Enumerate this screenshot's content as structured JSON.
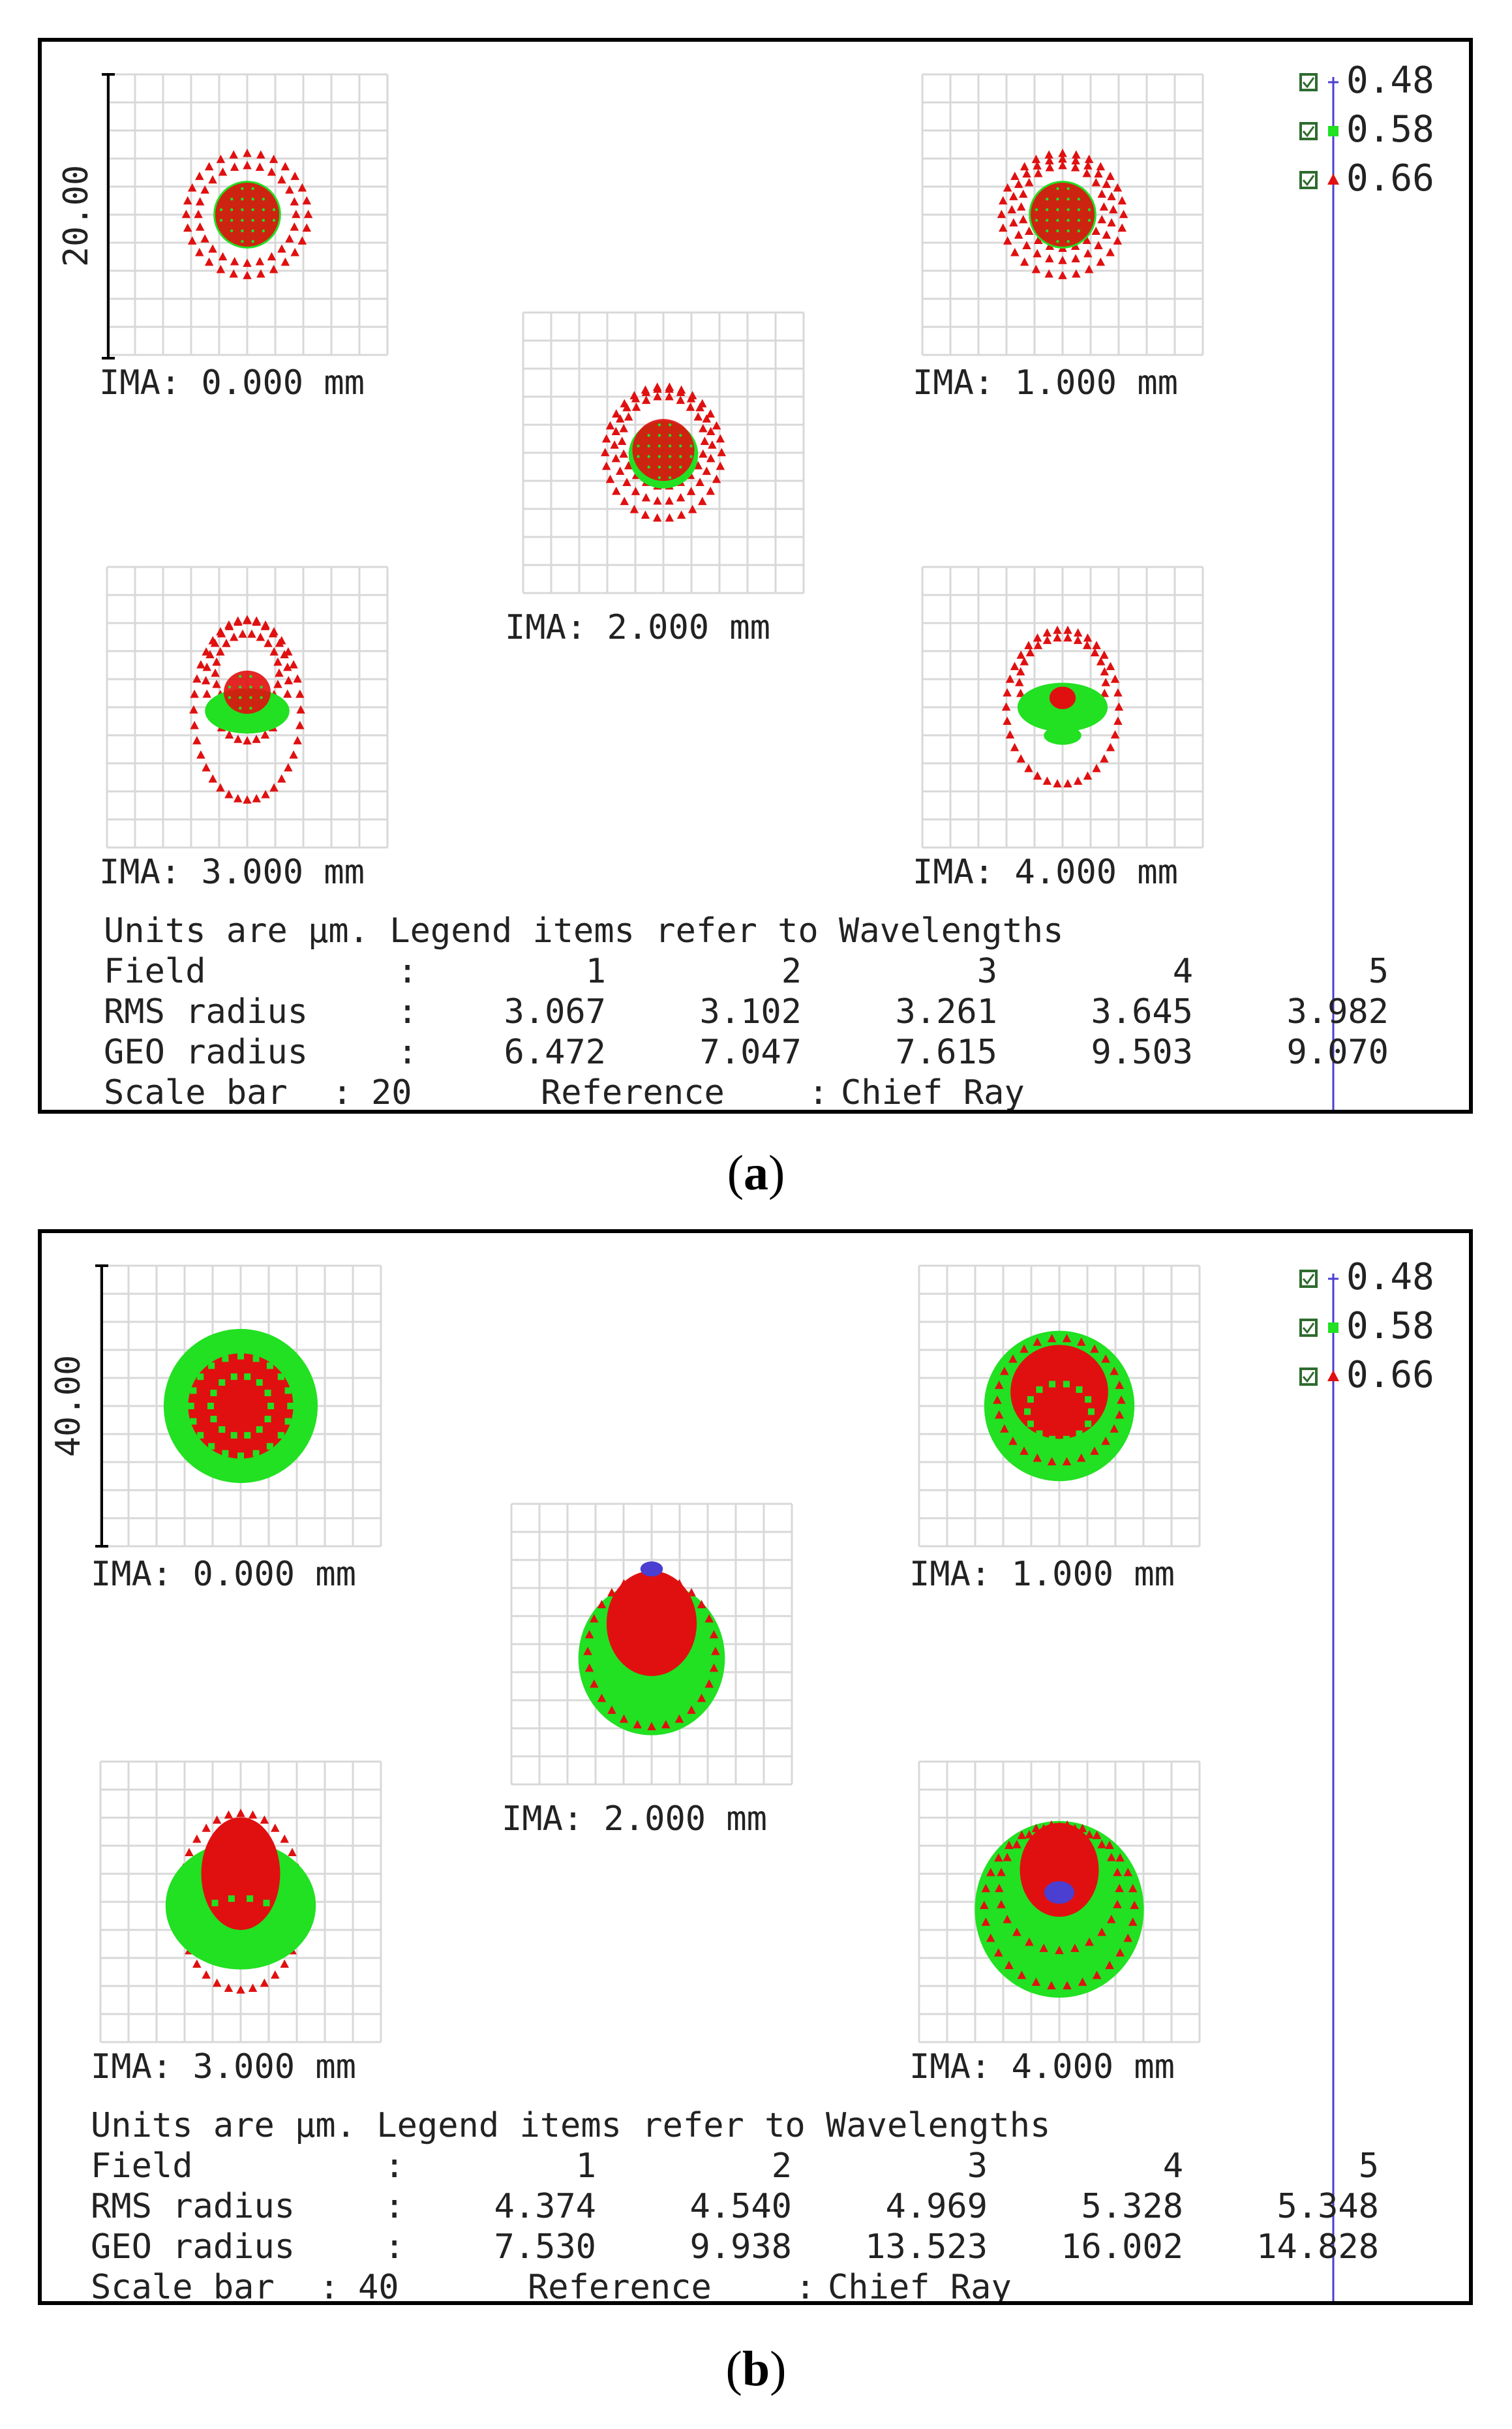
{
  "colors": {
    "w048": "#4a3fd0",
    "w058": "#22e022",
    "w066": "#e01010",
    "grid": "#d8d8d8",
    "text": "#222222",
    "checkbox": "#2e6b2e"
  },
  "icons": {
    "checkbox": "checkbox-icon",
    "w048": "plus-marker-icon",
    "w058": "square-marker-icon",
    "w066": "triangle-marker-icon"
  },
  "figures": [
    {
      "label": "a",
      "chart_data": {
        "type": "spot-diagram",
        "legend": [
          {
            "wavelength": "0.48",
            "marker": "plus"
          },
          {
            "wavelength": "0.58",
            "marker": "square"
          },
          {
            "wavelength": "0.66",
            "marker": "triangle"
          }
        ],
        "scale_label": "20.00",
        "fields": [
          {
            "label": "IMA: 0.000 mm",
            "rings": [
              {
                "color": "w066",
                "rx": 6.5,
                "ry": 6.5,
                "dy": 0,
                "marker": "triangle",
                "n": 28
              },
              {
                "color": "w066",
                "rx": 5.2,
                "ry": 5.2,
                "dy": 0,
                "marker": "triangle",
                "n": 24
              },
              {
                "color": "w058",
                "rx": 3.6,
                "ry": 3.6,
                "dy": 0,
                "marker": "fill"
              },
              {
                "color": "w066",
                "rx": 3.4,
                "ry": 3.4,
                "dy": 0,
                "marker": "trifill"
              }
            ]
          },
          {
            "label": "IMA: 1.000 mm",
            "rings": [
              {
                "color": "w066",
                "rx": 6.5,
                "ry": 6.5,
                "dy": 0,
                "marker": "triangle",
                "n": 28
              },
              {
                "color": "w066",
                "rx": 5.4,
                "ry": 5.4,
                "dy": -0.5,
                "marker": "triangle",
                "n": 24
              },
              {
                "color": "w066",
                "rx": 4.4,
                "ry": 4.4,
                "dy": -0.8,
                "marker": "triangle",
                "n": 20
              },
              {
                "color": "w058",
                "rx": 3.6,
                "ry": 3.6,
                "dy": 0,
                "marker": "fill"
              },
              {
                "color": "w066",
                "rx": 3.4,
                "ry": 3.4,
                "dy": 0,
                "marker": "trifill"
              }
            ]
          },
          {
            "label": "IMA: 2.000 mm",
            "rings": [
              {
                "color": "w066",
                "rx": 6.2,
                "ry": 7.0,
                "dy": 0,
                "marker": "triangle",
                "n": 30
              },
              {
                "color": "w066",
                "rx": 5.2,
                "ry": 6.0,
                "dy": -0.8,
                "marker": "triangle",
                "n": 26
              },
              {
                "color": "w066",
                "rx": 4.4,
                "ry": 4.8,
                "dy": -1.2,
                "marker": "triangle",
                "n": 22
              },
              {
                "color": "w058",
                "rx": 3.7,
                "ry": 3.6,
                "dy": 0.2,
                "marker": "fill"
              },
              {
                "color": "w066",
                "rx": 3.3,
                "ry": 3.3,
                "dy": -0.3,
                "marker": "trifill"
              }
            ]
          },
          {
            "label": "IMA: 3.000 mm",
            "rings": [
              {
                "color": "w066",
                "rx": 5.7,
                "ry": 9.6,
                "dy": 0.3,
                "marker": "triangle",
                "n": 36
              },
              {
                "color": "w066",
                "rx": 4.4,
                "ry": 6.4,
                "dy": -2.8,
                "marker": "triangle",
                "n": 28
              },
              {
                "color": "w066",
                "rx": 3.4,
                "ry": 4.2,
                "dy": -3.6,
                "marker": "triangle",
                "n": 22
              },
              {
                "color": "w058",
                "rx": 4.5,
                "ry": 2.4,
                "dy": 0.4,
                "marker": "fill"
              },
              {
                "color": "w066",
                "rx": 2.5,
                "ry": 2.3,
                "dy": -1.6,
                "marker": "trifill"
              }
            ]
          },
          {
            "label": "IMA: 4.000 mm",
            "rings": [
              {
                "color": "w066",
                "rx": 6.0,
                "ry": 8.2,
                "dy": 0,
                "marker": "triangle",
                "n": 34
              },
              {
                "color": "w066",
                "rx": 4.6,
                "ry": 4.8,
                "dy": -2.6,
                "marker": "triangle",
                "n": 26
              },
              {
                "color": "w058",
                "rx": 4.8,
                "ry": 2.6,
                "dy": 0,
                "marker": "fill"
              },
              {
                "color": "w058",
                "rx": 2.0,
                "ry": 1.0,
                "dy": 3.0,
                "marker": "fill"
              },
              {
                "color": "w066",
                "rx": 1.4,
                "ry": 1.2,
                "dy": -1.0,
                "marker": "fill"
              }
            ]
          }
        ],
        "table": {
          "title": "Units are µm. Legend items refer to Wavelengths",
          "field_label": "Field",
          "field_values": [
            "1",
            "2",
            "3",
            "4",
            "5"
          ],
          "rms_label": "RMS radius",
          "rms_values": [
            "3.067",
            "3.102",
            "3.261",
            "3.645",
            "3.982"
          ],
          "geo_label": "GEO radius",
          "geo_values": [
            "6.472",
            "7.047",
            "7.615",
            "9.503",
            "9.070"
          ],
          "scale_bar_label": "Scale bar",
          "scale_bar_value": "20",
          "reference_label": "Reference",
          "reference_value": "Chief Ray"
        }
      }
    },
    {
      "label": "b",
      "chart_data": {
        "type": "spot-diagram",
        "legend": [
          {
            "wavelength": "0.48",
            "marker": "plus"
          },
          {
            "wavelength": "0.58",
            "marker": "square"
          },
          {
            "wavelength": "0.66",
            "marker": "triangle"
          }
        ],
        "scale_label": "40.00",
        "fields": [
          {
            "label": "IMA: 0.000 mm",
            "rings": [
              {
                "color": "w058",
                "rx": 8.2,
                "ry": 8.2,
                "dy": 0,
                "marker": "fill"
              },
              {
                "color": "w066",
                "rx": 5.6,
                "ry": 5.6,
                "dy": 0,
                "marker": "fill"
              },
              {
                "color": "w058",
                "rx": 5.3,
                "ry": 5.3,
                "dy": 0,
                "marker": "ring",
                "n": 20
              },
              {
                "color": "w058",
                "rx": 3.2,
                "ry": 3.2,
                "dy": 0,
                "marker": "ring",
                "n": 14
              }
            ]
          },
          {
            "label": "IMA: 1.000 mm",
            "rings": [
              {
                "color": "w058",
                "rx": 8.0,
                "ry": 8.0,
                "dy": 0,
                "marker": "fill"
              },
              {
                "color": "w066",
                "rx": 6.6,
                "ry": 6.6,
                "dy": -0.6,
                "marker": "triangle",
                "n": 26
              },
              {
                "color": "w066",
                "rx": 5.2,
                "ry": 5.0,
                "dy": -1.5,
                "marker": "fill"
              },
              {
                "color": "w058",
                "rx": 3.4,
                "ry": 3.0,
                "dy": 0.6,
                "marker": "ring",
                "n": 14
              }
            ]
          },
          {
            "label": "IMA: 2.000 mm",
            "rings": [
              {
                "color": "w058",
                "rx": 7.8,
                "ry": 8.2,
                "dy": 1.5,
                "marker": "fill"
              },
              {
                "color": "w066",
                "rx": 6.8,
                "ry": 8.0,
                "dy": 0.8,
                "marker": "triangle",
                "n": 28
              },
              {
                "color": "w066",
                "rx": 4.8,
                "ry": 5.6,
                "dy": -2.2,
                "marker": "fill"
              },
              {
                "color": "w048",
                "rx": 1.2,
                "ry": 0.8,
                "dy": -8.0,
                "marker": "fill"
              }
            ]
          },
          {
            "label": "IMA: 3.000 mm",
            "rings": [
              {
                "color": "w066",
                "rx": 6.6,
                "ry": 9.4,
                "dy": 0,
                "marker": "triangle",
                "n": 32
              },
              {
                "color": "w058",
                "rx": 8.0,
                "ry": 6.8,
                "dy": 0.4,
                "marker": "fill"
              },
              {
                "color": "w066",
                "rx": 4.2,
                "ry": 6.0,
                "dy": -3.0,
                "marker": "fill"
              },
              {
                "color": "w058",
                "rx": 4.4,
                "ry": 2.4,
                "dy": 2.0,
                "marker": "ring",
                "n": 14
              }
            ]
          },
          {
            "label": "IMA: 4.000 mm",
            "rings": [
              {
                "color": "w058",
                "rx": 9.0,
                "ry": 9.4,
                "dy": 0.8,
                "marker": "fill"
              },
              {
                "color": "w066",
                "rx": 8.0,
                "ry": 8.6,
                "dy": 0.4,
                "marker": "triangle",
                "n": 30
              },
              {
                "color": "w066",
                "rx": 6.4,
                "ry": 6.6,
                "dy": -1.4,
                "marker": "triangle",
                "n": 24
              },
              {
                "color": "w066",
                "rx": 4.2,
                "ry": 5.0,
                "dy": -3.4,
                "marker": "fill"
              },
              {
                "color": "w048",
                "rx": 1.6,
                "ry": 1.2,
                "dy": -1.0,
                "marker": "fill"
              }
            ]
          }
        ],
        "table": {
          "title": "Units are µm. Legend items refer to Wavelengths",
          "field_label": "Field",
          "field_values": [
            "1",
            "2",
            "3",
            "4",
            "5"
          ],
          "rms_label": "RMS radius",
          "rms_values": [
            "4.374",
            "4.540",
            "4.969",
            "5.328",
            "5.348"
          ],
          "geo_label": "GEO radius",
          "geo_values": [
            "7.530",
            "9.938",
            "13.523",
            "16.002",
            "14.828"
          ],
          "scale_bar_label": "Scale bar",
          "scale_bar_value": "40",
          "reference_label": "Reference",
          "reference_value": "Chief Ray"
        }
      }
    }
  ]
}
